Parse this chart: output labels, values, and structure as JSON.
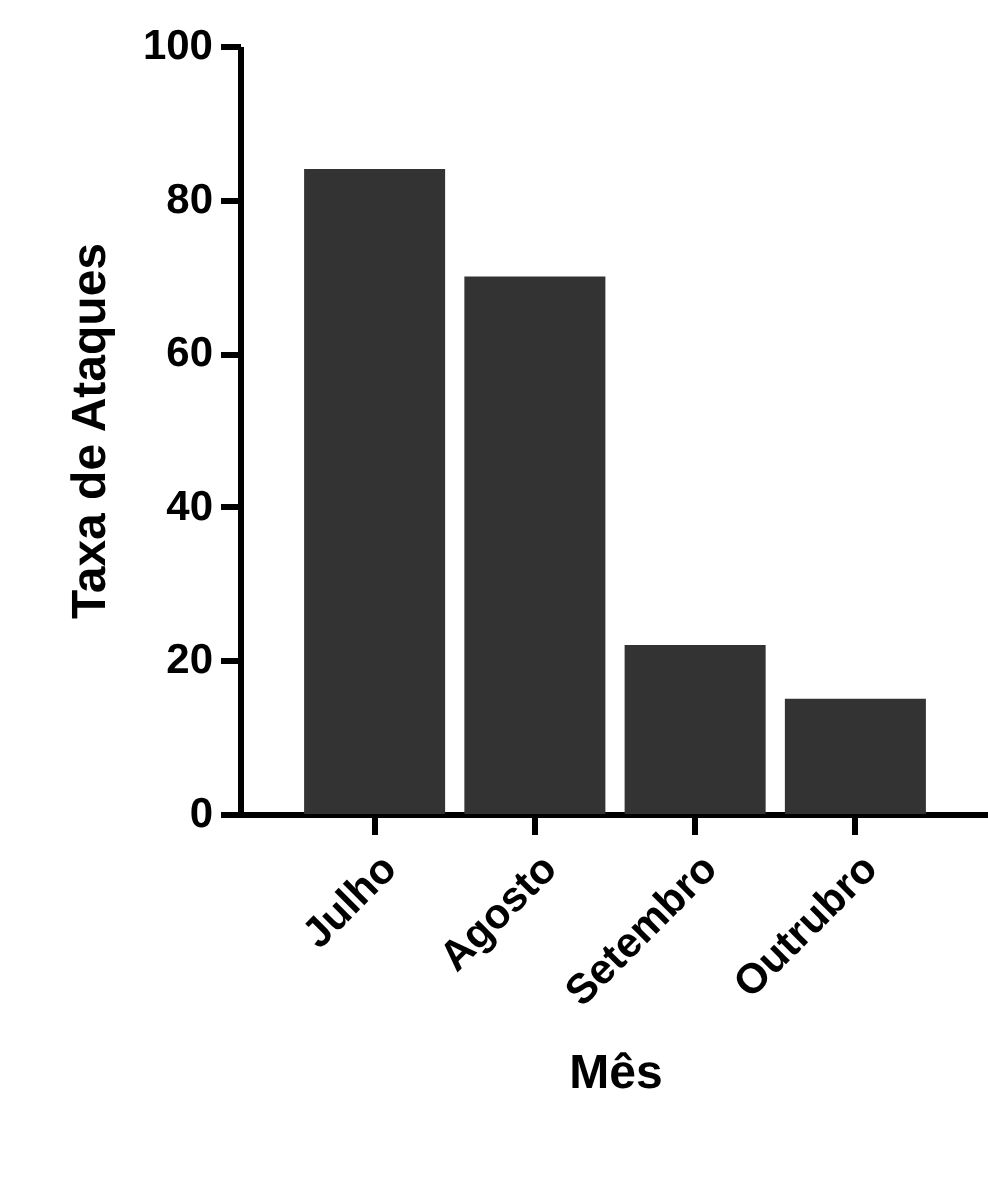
{
  "chart_data": {
    "type": "bar",
    "xlabel": "Mês",
    "ylabel": "Taxa de Ataques",
    "categories": [
      "Julho",
      "Agosto",
      "Setembro",
      "Outrubro"
    ],
    "values": [
      84,
      70,
      22,
      15
    ],
    "color": "#333333",
    "ylim": [
      0,
      100
    ],
    "yticks": [
      0,
      20,
      40,
      60,
      80,
      100
    ],
    "grid": false
  }
}
